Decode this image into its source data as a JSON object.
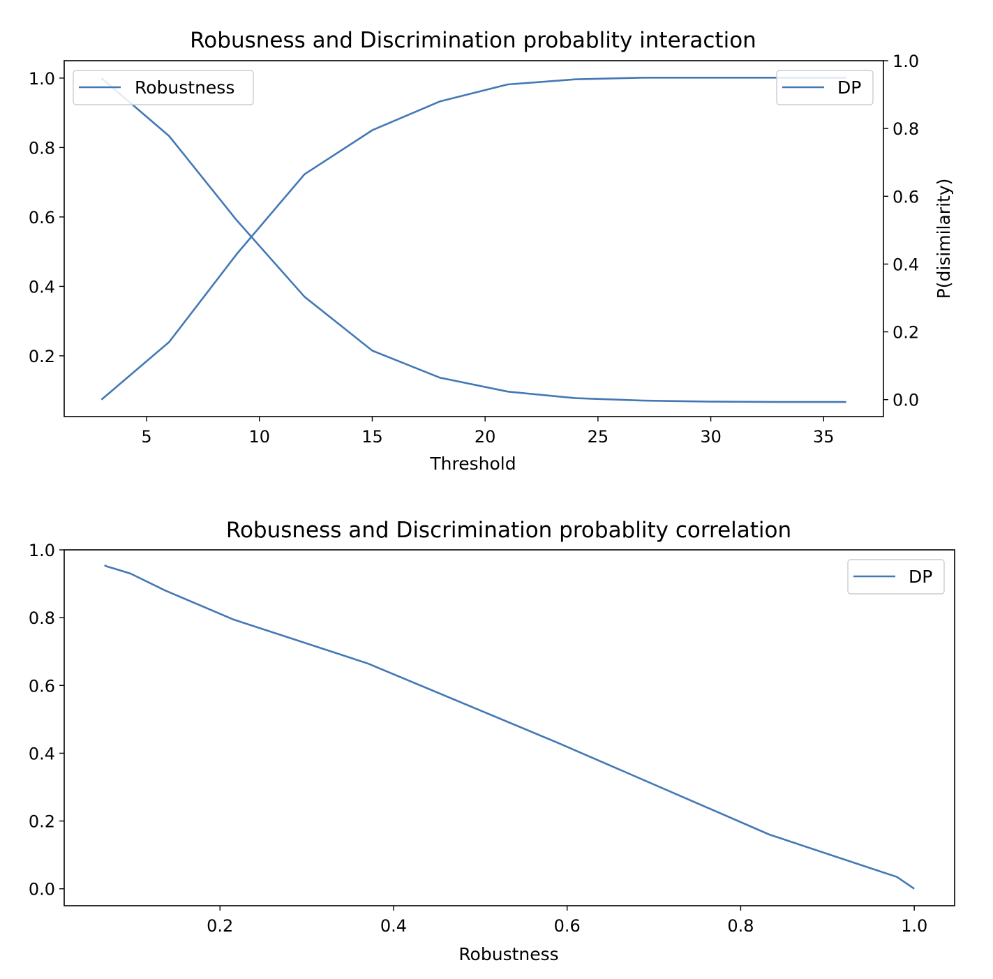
{
  "chart_data": [
    {
      "type": "line",
      "title": "Robusness and Discrimination probablity interaction",
      "xlabel": "Threshold",
      "ylabel": "",
      "ylabel_right": "P(disimilarity)",
      "x": [
        3,
        6,
        9,
        12,
        15,
        18,
        21,
        24,
        27,
        30,
        33,
        36
      ],
      "xlim": [
        1.35,
        37.65
      ],
      "ylim": [
        0.025,
        1.05
      ],
      "ylim_right": [
        -0.05,
        1.0
      ],
      "xticks": [
        5,
        10,
        15,
        20,
        25,
        30,
        35
      ],
      "yticks": [
        0.2,
        0.4,
        0.6,
        0.8,
        1.0
      ],
      "yticks_right": [
        0.0,
        0.2,
        0.4,
        0.6,
        0.8,
        1.0
      ],
      "grid": false,
      "series": [
        {
          "name": "Robustness",
          "axis": "left",
          "color": "#4378b5",
          "values": [
            1.0,
            0.833,
            0.59,
            0.37,
            0.215,
            0.137,
            0.097,
            0.078,
            0.071,
            0.068,
            0.067,
            0.067
          ],
          "legend": "upper left"
        },
        {
          "name": "DP",
          "axis": "right",
          "color": "#4378b5",
          "values": [
            0.0,
            0.17,
            0.43,
            0.665,
            0.795,
            0.88,
            0.93,
            0.945,
            0.95,
            0.95,
            0.95,
            0.95
          ],
          "legend": "upper right"
        }
      ]
    },
    {
      "type": "line",
      "title": "Robusness and Discrimination probablity correlation",
      "xlabel": "Robustness",
      "ylabel": "",
      "x": [
        0.067,
        0.068,
        0.071,
        0.078,
        0.097,
        0.137,
        0.215,
        0.37,
        0.59,
        0.833,
        0.98,
        1.0
      ],
      "xlim": [
        0.0205,
        1.0465
      ],
      "ylim": [
        -0.05,
        1.0
      ],
      "xticks": [
        0.2,
        0.4,
        0.6,
        0.8,
        1.0
      ],
      "yticks": [
        0.0,
        0.2,
        0.4,
        0.6,
        0.8,
        1.0
      ],
      "grid": false,
      "series": [
        {
          "name": "DP",
          "color": "#4378b5",
          "values": [
            0.955,
            0.953,
            0.95,
            0.945,
            0.93,
            0.88,
            0.795,
            0.665,
            0.43,
            0.16,
            0.035,
            0.0
          ],
          "legend": "upper right"
        }
      ]
    }
  ]
}
